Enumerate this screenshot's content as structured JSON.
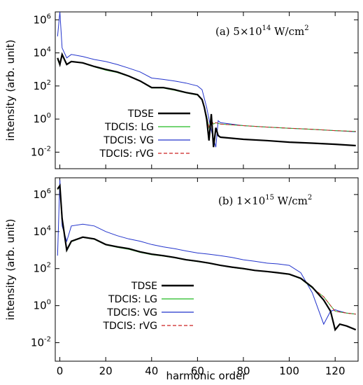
{
  "chart_data": [
    {
      "type": "line",
      "title": "(a) 5×10",
      "title_exp": "14",
      "title_unit": " W/cm",
      "title_unit_exp": "2",
      "xlabel": "",
      "ylabel": "intensity (arb. unit)",
      "xlim": [
        -2,
        130
      ],
      "ylim": [
        0.001,
        3000000
      ],
      "yscale": "log",
      "yticks": [
        0.01,
        1,
        100,
        10000,
        1000000
      ],
      "ytick_labels": [
        {
          "base": "10",
          "exp": "-2"
        },
        {
          "base": "10",
          "exp": "0"
        },
        {
          "base": "10",
          "exp": "2"
        },
        {
          "base": "10",
          "exp": "4"
        },
        {
          "base": "10",
          "exp": "6"
        }
      ],
      "grid": false,
      "legend_position": "bottom-left",
      "legend": [
        "TDSE",
        "TDCIS: LG",
        "TDCIS: VG",
        "TDCIS: rVG"
      ],
      "series": [
        {
          "name": "TDSE",
          "color": "#000000",
          "dash": "solid",
          "width": 2.2,
          "x": [
            -1,
            0,
            1,
            3,
            5,
            10,
            15,
            20,
            25,
            30,
            35,
            40,
            45,
            50,
            55,
            60,
            62,
            63,
            64,
            65,
            66,
            67,
            68,
            69,
            70,
            80,
            90,
            100,
            110,
            120,
            129
          ],
          "y": [
            5000,
            2000,
            8000,
            2000,
            3000,
            2500,
            1500,
            1000,
            700,
            400,
            200,
            80,
            80,
            60,
            40,
            30,
            15,
            5,
            1,
            0.05,
            2,
            0.02,
            0.3,
            0.1,
            0.08,
            0.06,
            0.05,
            0.04,
            0.035,
            0.03,
            0.025
          ]
        },
        {
          "name": "TDCIS: LG",
          "color": "#22bb22",
          "dash": "solid",
          "width": 1,
          "x": [
            -1,
            0,
            1,
            3,
            5,
            10,
            15,
            20,
            25,
            30,
            35,
            40,
            45,
            50,
            55,
            60,
            62,
            63,
            64,
            65,
            66,
            67,
            68,
            69,
            70,
            80,
            90,
            100,
            110,
            120,
            129
          ],
          "y": [
            4000,
            1800,
            7000,
            2000,
            3000,
            2400,
            1400,
            900,
            650,
            380,
            190,
            75,
            75,
            55,
            38,
            28,
            14,
            5,
            1.5,
            0.3,
            0.8,
            0.5,
            0.6,
            0.55,
            0.5,
            0.4,
            0.33,
            0.28,
            0.24,
            0.2,
            0.18
          ]
        },
        {
          "name": "TDCIS: VG",
          "color": "#2233cc",
          "dash": "solid",
          "width": 1,
          "x": [
            -1,
            0,
            1,
            3,
            5,
            10,
            15,
            20,
            25,
            30,
            35,
            40,
            45,
            50,
            55,
            60,
            62,
            64,
            66,
            68,
            69,
            70,
            80,
            90,
            100,
            110,
            120,
            129
          ],
          "y": [
            100000,
            3000000,
            20000,
            5000,
            8000,
            6000,
            4000,
            3000,
            2000,
            1200,
            700,
            300,
            250,
            200,
            150,
            100,
            60,
            5,
            0.2,
            0.02,
            0.8,
            0.6,
            0.4,
            0.33,
            0.28,
            0.24,
            0.2,
            0.17
          ]
        },
        {
          "name": "TDCIS: rVG",
          "color": "#cc2222",
          "dash": "dashed",
          "width": 1,
          "x": [
            -1,
            0,
            1,
            3,
            5,
            10,
            15,
            20,
            25,
            30,
            35,
            40,
            45,
            50,
            55,
            60,
            62,
            63,
            64,
            65,
            66,
            67,
            68,
            69,
            70,
            80,
            90,
            100,
            110,
            120,
            129
          ],
          "y": [
            4500,
            1900,
            7500,
            2100,
            3000,
            2500,
            1450,
            950,
            680,
            390,
            195,
            78,
            78,
            57,
            39,
            29,
            14,
            5,
            1.4,
            0.3,
            0.8,
            0.5,
            0.6,
            0.55,
            0.5,
            0.4,
            0.33,
            0.28,
            0.24,
            0.2,
            0.18
          ]
        }
      ]
    },
    {
      "type": "line",
      "title": "(b) 1×10",
      "title_exp": "15",
      "title_unit": " W/cm",
      "title_unit_exp": "2",
      "xlabel": "harmonic order",
      "ylabel": "intensity (arb. unit)",
      "xlim": [
        -2,
        130
      ],
      "ylim": [
        0.001,
        8000000
      ],
      "yscale": "log",
      "xticks": [
        0,
        20,
        40,
        60,
        80,
        100,
        120
      ],
      "yticks": [
        0.01,
        1,
        100,
        10000,
        1000000
      ],
      "ytick_labels": [
        {
          "base": "10",
          "exp": "-2"
        },
        {
          "base": "10",
          "exp": "0"
        },
        {
          "base": "10",
          "exp": "2"
        },
        {
          "base": "10",
          "exp": "4"
        },
        {
          "base": "10",
          "exp": "6"
        }
      ],
      "grid": false,
      "legend_position": "bottom-left",
      "legend": [
        "TDSE",
        "TDCIS: LG",
        "TDCIS: VG",
        "TDCIS: rVG"
      ],
      "series": [
        {
          "name": "TDSE",
          "color": "#000000",
          "dash": "solid",
          "width": 2.2,
          "x": [
            -1,
            0,
            1,
            3,
            5,
            10,
            15,
            20,
            25,
            30,
            35,
            40,
            45,
            50,
            55,
            60,
            65,
            70,
            75,
            80,
            85,
            90,
            95,
            100,
            105,
            110,
            115,
            118,
            120,
            122,
            125,
            129
          ],
          "y": [
            2000000,
            3000000,
            50000,
            1000,
            3000,
            5000,
            4000,
            2000,
            1500,
            1200,
            800,
            600,
            500,
            400,
            300,
            250,
            200,
            150,
            120,
            100,
            80,
            70,
            60,
            50,
            30,
            10,
            2,
            0.5,
            0.05,
            0.1,
            0.08,
            0.05
          ]
        },
        {
          "name": "TDCIS: LG",
          "color": "#22bb22",
          "dash": "solid",
          "width": 1,
          "x": [
            -1,
            0,
            1,
            3,
            5,
            10,
            15,
            20,
            25,
            30,
            35,
            40,
            45,
            50,
            55,
            60,
            65,
            70,
            75,
            80,
            85,
            90,
            95,
            100,
            105,
            110,
            115,
            118,
            120,
            122,
            125,
            129
          ],
          "y": [
            1800000,
            2800000,
            45000,
            900,
            2800,
            4800,
            3800,
            1900,
            1400,
            1100,
            750,
            560,
            470,
            380,
            290,
            240,
            190,
            145,
            115,
            95,
            78,
            68,
            58,
            48,
            28,
            9,
            3,
            1,
            0.5,
            0.45,
            0.4,
            0.35
          ]
        },
        {
          "name": "TDCIS: VG",
          "color": "#2233cc",
          "dash": "solid",
          "width": 1,
          "x": [
            -1,
            0,
            1,
            3,
            5,
            10,
            15,
            20,
            25,
            30,
            35,
            40,
            45,
            50,
            55,
            60,
            65,
            70,
            75,
            80,
            85,
            90,
            95,
            100,
            105,
            110,
            115,
            118,
            120,
            122,
            125,
            129
          ],
          "y": [
            500,
            6000000,
            20000,
            3000,
            20000,
            25000,
            20000,
            10000,
            6000,
            4000,
            3000,
            2000,
            1500,
            1200,
            900,
            700,
            600,
            500,
            400,
            300,
            250,
            200,
            180,
            150,
            60,
            5,
            0.1,
            0.5,
            0.6,
            0.5,
            0.4,
            0.35
          ]
        },
        {
          "name": "TDCIS: rVG",
          "color": "#cc2222",
          "dash": "dashed",
          "width": 1,
          "x": [
            -1,
            0,
            1,
            3,
            5,
            10,
            15,
            20,
            25,
            30,
            35,
            40,
            45,
            50,
            55,
            60,
            65,
            70,
            75,
            80,
            85,
            90,
            95,
            100,
            105,
            110,
            115,
            118,
            120,
            122,
            125,
            129
          ],
          "y": [
            1900000,
            2900000,
            47000,
            950,
            2900,
            4900,
            3900,
            1950,
            1450,
            1150,
            780,
            580,
            480,
            390,
            295,
            245,
            195,
            148,
            118,
            98,
            79,
            69,
            59,
            49,
            29,
            9.5,
            3,
            1,
            0.5,
            0.45,
            0.4,
            0.35
          ]
        }
      ]
    }
  ]
}
